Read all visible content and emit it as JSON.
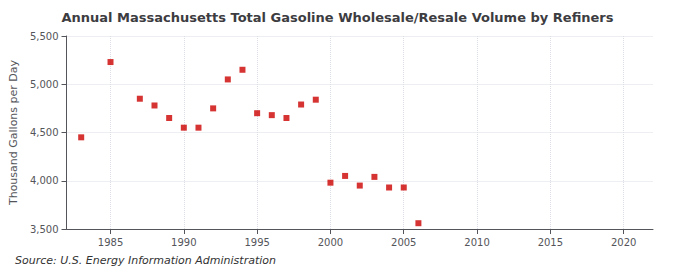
{
  "chart_data": {
    "type": "scatter",
    "title": "Annual Massachusetts Total Gasoline Wholesale/Resale Volume by Refiners",
    "ylabel": "Thousand Gallons per Day",
    "annotation": "Source: U.S. Energy Information Administration",
    "x": [
      1983,
      1985,
      1987,
      1988,
      1989,
      1990,
      1991,
      1992,
      1993,
      1994,
      1995,
      1996,
      1997,
      1998,
      1999,
      2000,
      2001,
      2002,
      2003,
      2004,
      2005,
      2006
    ],
    "values": [
      4450,
      5230,
      4850,
      4780,
      4650,
      4550,
      4550,
      4750,
      5050,
      5150,
      4700,
      4680,
      4650,
      4790,
      4840,
      3980,
      4050,
      3950,
      4040,
      3930,
      3930,
      3560
    ],
    "color": "#cc0000",
    "marker": "square",
    "xlim": [
      1982,
      2022
    ],
    "xticks": [
      1985,
      1990,
      1995,
      2000,
      2005,
      2010,
      2015,
      2020
    ],
    "ylim": [
      3500,
      5500
    ],
    "yticks": [
      {
        "value": 3500,
        "label": "3,500"
      },
      {
        "value": 4000,
        "label": "4,000"
      },
      {
        "value": 4500,
        "label": "4,500"
      },
      {
        "value": 5000,
        "label": "5,000"
      },
      {
        "value": 5500,
        "label": "5,500"
      }
    ],
    "grid": true
  }
}
